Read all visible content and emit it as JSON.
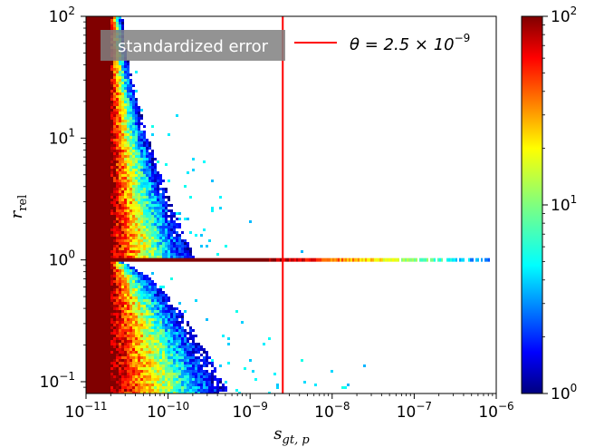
{
  "chart_data": {
    "type": "heatmap",
    "title": "",
    "xlabel": "s",
    "xlabel_sub": "gt, p",
    "ylabel": "r",
    "ylabel_sub": "rel",
    "x_scale": "log",
    "y_scale": "log",
    "xlim": [
      1e-11,
      1e-06
    ],
    "ylim": [
      0.08,
      100
    ],
    "x_ticks": [
      {
        "value": 1e-11,
        "base": "10",
        "exp": "−11"
      },
      {
        "value": 1e-10,
        "base": "10",
        "exp": "−10"
      },
      {
        "value": 1e-09,
        "base": "10",
        "exp": "−9"
      },
      {
        "value": 1e-08,
        "base": "10",
        "exp": "−8"
      },
      {
        "value": 1e-07,
        "base": "10",
        "exp": "−7"
      },
      {
        "value": 1e-06,
        "base": "10",
        "exp": "−6"
      }
    ],
    "y_ticks": [
      {
        "value": 0.1,
        "base": "10",
        "exp": "−1"
      },
      {
        "value": 1,
        "base": "10",
        "exp": "0"
      },
      {
        "value": 10,
        "base": "10",
        "exp": "1"
      },
      {
        "value": 100,
        "base": "10",
        "exp": "2"
      }
    ],
    "vline": {
      "x": 2.5e-09,
      "color": "#ff0000"
    },
    "legend": {
      "placement": "top",
      "label_box": "standardized error",
      "line_label_prefix": "θ = 2.5 × 10",
      "line_label_exp": "−9"
    },
    "colorbar": {
      "scale": "log",
      "range": [
        1,
        100
      ],
      "colormap": "jet",
      "ticks": [
        {
          "value": 1,
          "base": "10",
          "exp": "0"
        },
        {
          "value": 10,
          "base": "10",
          "exp": "1"
        },
        {
          "value": 100,
          "base": "10",
          "exp": "2"
        }
      ]
    },
    "grid": false,
    "structure": {
      "saturated_x_max": 2e-11,
      "plateau_y": 1.0,
      "plateau_x_max": 8e-07,
      "wedge_x_max_at_y_0_1": 3e-10,
      "upper_cloud_x_max_at_y_100": 1e-10
    }
  }
}
